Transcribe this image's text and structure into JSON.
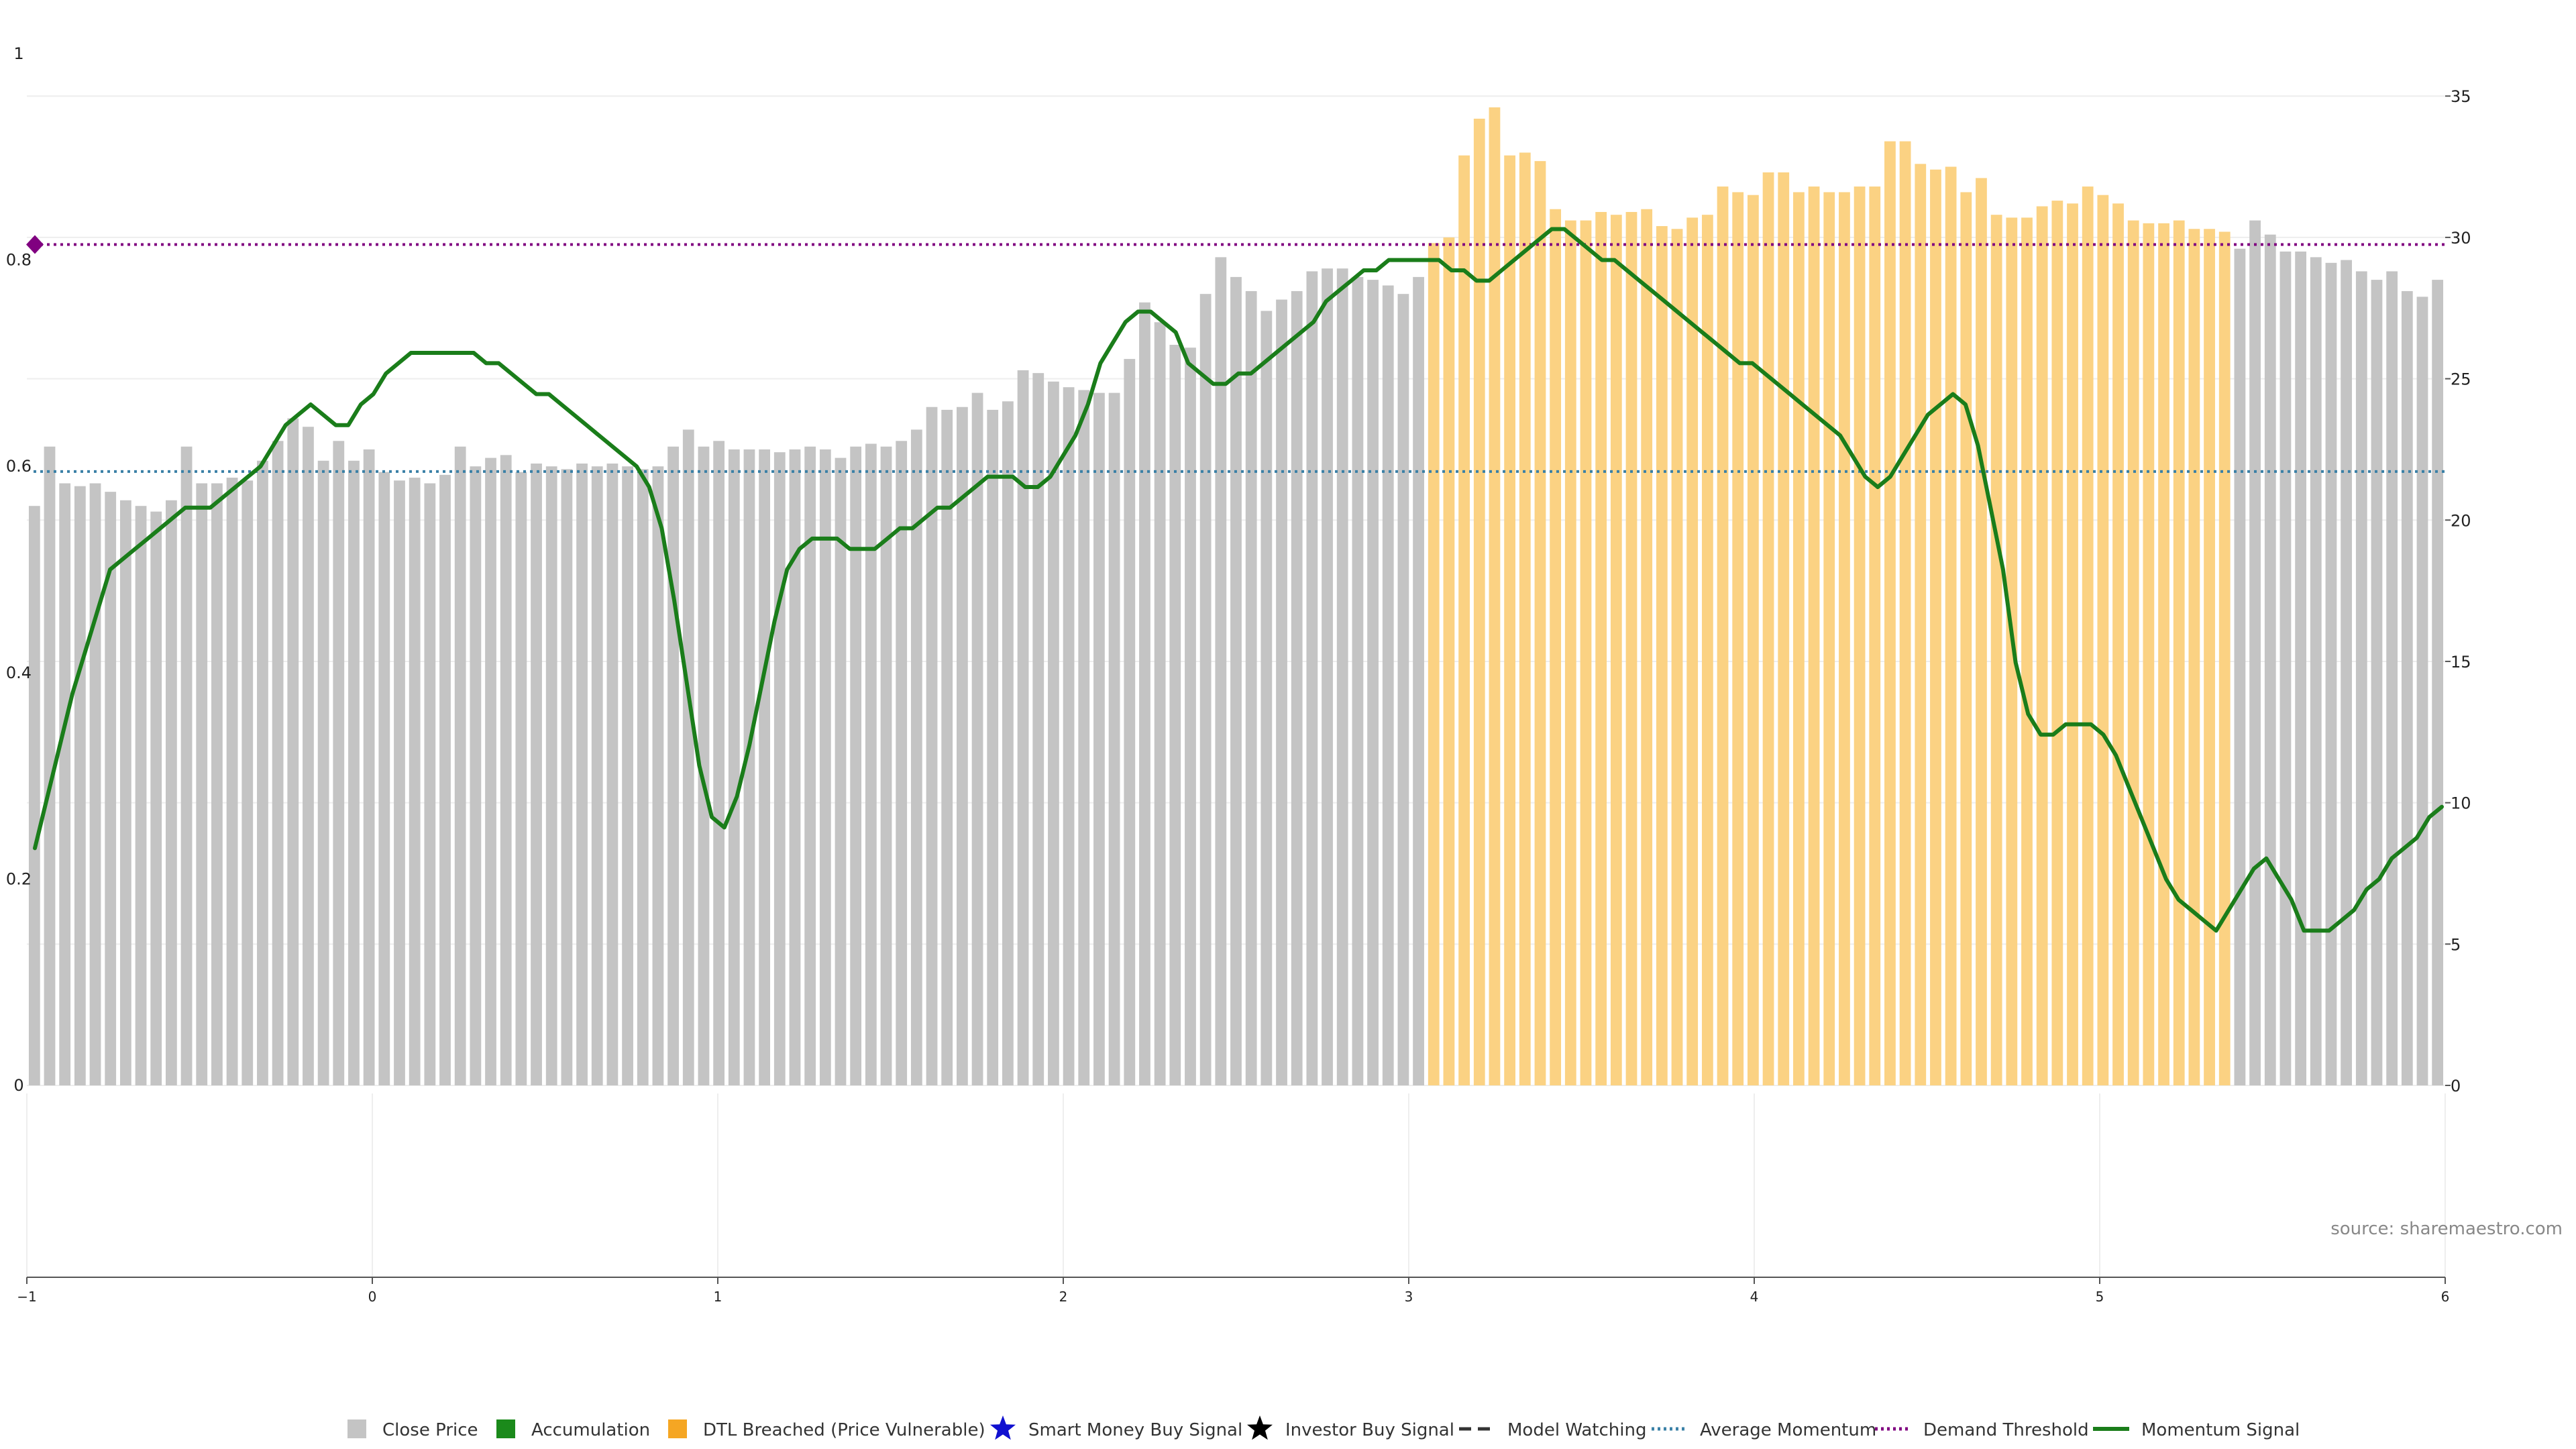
{
  "chart_data": {
    "type": "bar",
    "source_label": "source: sharemaestro.com",
    "left_axis": {
      "ticks": [
        0,
        0.2,
        0.4,
        0.6,
        0.8,
        1
      ],
      "tick_labels": [
        "0",
        "0.2",
        "0.4",
        "0.6",
        "0.8",
        "1"
      ],
      "ylim": [
        0,
        1
      ]
    },
    "right_axis": {
      "ticks": [
        0,
        5,
        10,
        15,
        20,
        25,
        30,
        35
      ],
      "tick_labels": [
        "0",
        "5",
        "10",
        "15",
        "20",
        "25",
        "30",
        "35"
      ],
      "ylim": [
        0,
        36.5
      ]
    },
    "x_axis": {
      "ticks": [
        -1,
        0,
        1,
        2,
        3,
        4,
        5,
        6
      ],
      "tick_labels": [
        "−1",
        "0",
        "1",
        "2",
        "3",
        "4",
        "5",
        "6"
      ],
      "xlim": [
        -1,
        6
      ]
    },
    "grid": true,
    "legend_position": "bottom",
    "colors": {
      "close_price": "#c4c4c4",
      "accumulation": "#1b8a1b",
      "dtl_breached": "#fbd283",
      "dtl_legend": "#f5a623",
      "smart_money": "#1010d0",
      "investor": "#000000",
      "model_watching": "#333333",
      "average_momentum": "#3a80a6",
      "demand_threshold": "#800080",
      "momentum_signal": "#1a7d1a"
    },
    "average_momentum": 0.595,
    "demand_threshold": 0.815,
    "legend": [
      {
        "label": "Close Price",
        "symbol": "square",
        "color": "#c4c4c4"
      },
      {
        "label": "Accumulation",
        "symbol": "square",
        "color": "#1b8a1b"
      },
      {
        "label": "DTL Breached (Price Vulnerable)",
        "symbol": "square",
        "color": "#f5a623"
      },
      {
        "label": "Smart Money Buy Signal",
        "symbol": "star",
        "color": "#1010d0"
      },
      {
        "label": "Investor Buy Signal",
        "symbol": "star",
        "color": "#000000"
      },
      {
        "label": "Model Watching",
        "symbol": "dash",
        "color": "#333333"
      },
      {
        "label": "Average Momentum",
        "symbol": "dotted",
        "color": "#3a80a6"
      },
      {
        "label": "Demand Threshold",
        "symbol": "dotted",
        "color": "#800080"
      },
      {
        "label": "Momentum Signal",
        "symbol": "line",
        "color": "#1a7d1a"
      }
    ],
    "close_price": [
      20.5,
      22.6,
      21.3,
      21.2,
      21.3,
      21.0,
      20.7,
      20.5,
      20.3,
      20.7,
      22.6,
      21.3,
      21.3,
      21.5,
      21.4,
      22.1,
      22.8,
      23.6,
      23.3,
      22.1,
      22.8,
      22.1,
      22.5,
      21.7,
      21.4,
      21.5,
      21.3,
      21.6,
      22.6,
      21.9,
      22.2,
      22.3,
      21.7,
      22.0,
      21.9,
      21.8,
      22.0,
      21.9,
      22.0,
      21.9,
      21.8,
      21.9,
      22.6,
      23.2,
      22.6,
      22.8,
      22.5,
      22.5,
      22.5,
      22.4,
      22.5,
      22.6,
      22.5,
      22.2,
      22.6,
      22.7,
      22.6,
      22.8,
      23.2,
      24.0,
      23.9,
      24.0,
      24.5,
      23.9,
      24.2,
      25.3,
      25.2,
      24.9,
      24.7,
      24.6,
      24.5,
      24.5,
      25.7,
      27.7,
      27.0,
      26.2,
      26.1,
      28.0,
      29.3,
      28.6,
      28.1,
      27.4,
      27.8,
      28.1,
      28.8,
      28.9,
      28.9,
      28.6,
      28.5,
      28.3,
      28.0,
      28.6,
      29.8,
      30.0,
      32.9,
      34.2,
      34.6,
      32.9,
      33.0,
      32.7,
      31.0,
      30.6,
      30.6,
      30.9,
      30.8,
      30.9,
      31.0,
      30.4,
      30.3,
      30.7,
      30.8,
      31.8,
      31.6,
      31.5,
      32.3,
      32.3,
      31.6,
      31.8,
      31.6,
      31.6,
      31.8,
      31.8,
      33.4,
      33.4,
      32.6,
      32.4,
      32.5,
      31.6,
      32.1,
      30.8,
      30.7,
      30.7,
      31.1,
      31.3,
      31.2,
      31.8,
      31.5,
      31.2,
      30.6,
      30.5,
      30.5,
      30.6,
      30.3,
      30.3,
      30.2,
      29.6,
      30.6,
      30.1,
      29.5,
      29.5,
      29.3,
      29.1,
      29.2,
      28.8,
      28.5,
      28.8,
      28.1,
      27.9,
      28.5
    ],
    "dtl_breached_range": [
      92,
      144
    ],
    "momentum_signal": [
      0.23,
      0.28,
      0.33,
      0.38,
      0.42,
      0.46,
      0.5,
      0.51,
      0.52,
      0.53,
      0.54,
      0.55,
      0.56,
      0.56,
      0.56,
      0.57,
      0.58,
      0.59,
      0.6,
      0.62,
      0.64,
      0.65,
      0.66,
      0.65,
      0.64,
      0.64,
      0.66,
      0.67,
      0.69,
      0.7,
      0.71,
      0.71,
      0.71,
      0.71,
      0.71,
      0.71,
      0.7,
      0.7,
      0.69,
      0.68,
      0.67,
      0.67,
      0.66,
      0.65,
      0.64,
      0.63,
      0.62,
      0.61,
      0.6,
      0.58,
      0.54,
      0.47,
      0.39,
      0.31,
      0.26,
      0.25,
      0.28,
      0.33,
      0.39,
      0.45,
      0.5,
      0.52,
      0.53,
      0.53,
      0.53,
      0.52,
      0.52,
      0.52,
      0.53,
      0.54,
      0.54,
      0.55,
      0.56,
      0.56,
      0.57,
      0.58,
      0.59,
      0.59,
      0.59,
      0.58,
      0.58,
      0.59,
      0.61,
      0.63,
      0.66,
      0.7,
      0.72,
      0.74,
      0.75,
      0.75,
      0.74,
      0.73,
      0.7,
      0.69,
      0.68,
      0.68,
      0.69,
      0.69,
      0.7,
      0.71,
      0.72,
      0.73,
      0.74,
      0.76,
      0.77,
      0.78,
      0.79,
      0.79,
      0.8,
      0.8,
      0.8,
      0.8,
      0.8,
      0.79,
      0.79,
      0.78,
      0.78,
      0.79,
      0.8,
      0.81,
      0.82,
      0.83,
      0.83,
      0.82,
      0.81,
      0.8,
      0.8,
      0.79,
      0.78,
      0.77,
      0.76,
      0.75,
      0.74,
      0.73,
      0.72,
      0.71,
      0.7,
      0.7,
      0.69,
      0.68,
      0.67,
      0.66,
      0.65,
      0.64,
      0.63,
      0.61,
      0.59,
      0.58,
      0.59,
      0.61,
      0.63,
      0.65,
      0.66,
      0.67,
      0.66,
      0.62,
      0.56,
      0.5,
      0.41,
      0.36,
      0.34,
      0.34,
      0.35,
      0.35,
      0.35,
      0.34,
      0.32,
      0.29,
      0.26,
      0.23,
      0.2,
      0.18,
      0.17,
      0.16,
      0.15,
      0.17,
      0.19,
      0.21,
      0.22,
      0.2,
      0.18,
      0.15,
      0.15,
      0.15,
      0.16,
      0.17,
      0.19,
      0.2,
      0.22,
      0.23,
      0.24,
      0.26,
      0.27
    ]
  }
}
